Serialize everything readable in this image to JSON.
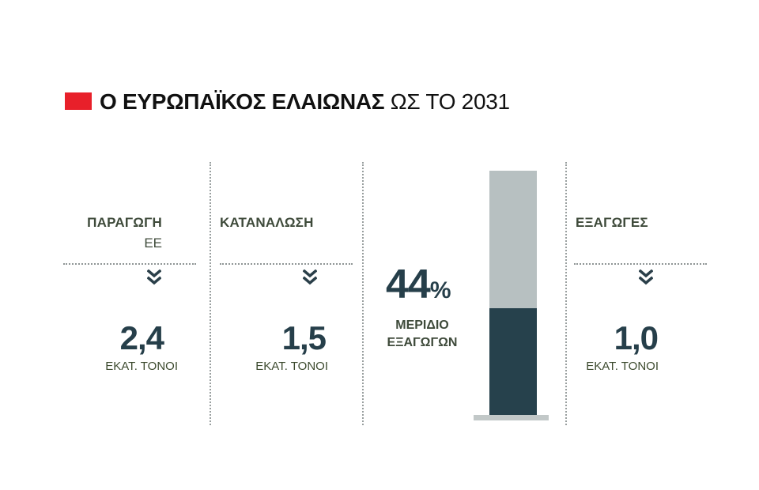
{
  "header": {
    "title_bold": "Ο ΕΥΡΩΠΑΪΚΟΣ ΕΛΑΙΩΝΑΣ",
    "title_light": "ΩΣ ΤΟ 2031",
    "accent_color": "#e8202a"
  },
  "colors": {
    "gauge_fill": "#26414c",
    "gauge_background": "#b7c0c1",
    "value_text": "#263f4a"
  },
  "chart_data": {
    "type": "bar",
    "categories": [
      "ΠΑΡΑΓΩΓΗ ΕΕ",
      "ΚΑΤΑΝΑΛΩΣΗ",
      "ΕΞΑΓΩΓΕΣ"
    ],
    "values": [
      2.4,
      1.5,
      1.0
    ],
    "metrics": [
      {
        "label": "ΠΑΡΑΓΩΓΗ",
        "sublabel": "ΕΕ",
        "value_text": "2,4",
        "unit": "ΕΚΑΤ. ΤΟΝΟΙ",
        "icon": "double-chevron-down-icon"
      },
      {
        "label": "ΚΑΤΑΝΑΛΩΣΗ",
        "sublabel": "",
        "value_text": "1,5",
        "unit": "ΕΚΑΤ. ΤΟΝΟΙ",
        "icon": "double-chevron-down-icon"
      },
      {
        "label": "ΕΞΑΓΩΓΕΣ",
        "sublabel": "",
        "value_text": "1,0",
        "unit": "ΕΚΑΤ. ΤΟΝΟΙ",
        "icon": "double-chevron-down-icon"
      }
    ],
    "export_share": {
      "value": 44,
      "value_text": "44",
      "percent_sign": "%",
      "label_line1": "ΜΕΡΙΔΙΟ",
      "label_line2": "ΕΞΑΓΩΓΩΝ",
      "fraction": 0.44
    }
  }
}
